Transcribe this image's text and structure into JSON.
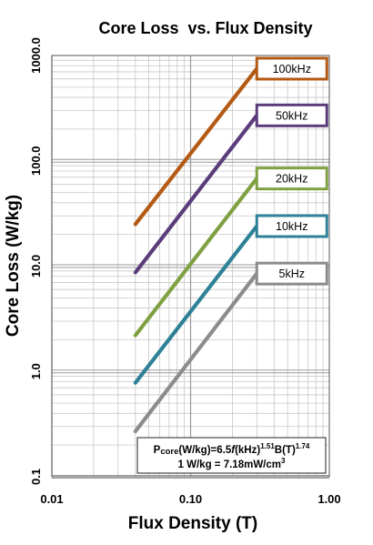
{
  "chart_data": {
    "type": "line",
    "title": "Core Loss  vs. Flux Density",
    "xlabel": "Flux Density (T)",
    "ylabel": "Core Loss (W/kg)",
    "xscale": "log",
    "yscale": "log",
    "xlim": [
      0.01,
      1.0
    ],
    "ylim": [
      0.1,
      1000.0
    ],
    "x_ticks": [
      "0.01",
      "0.10",
      "1.00"
    ],
    "y_ticks": [
      "0.1",
      "1.0",
      "10.0",
      "100.0",
      "1000.0"
    ],
    "grid": true,
    "legend_placement": "right, at each line end",
    "series": [
      {
        "name": "100kHz",
        "color": "#b45a14",
        "x": [
          0.04,
          0.3
        ],
        "y": [
          25,
          750
        ]
      },
      {
        "name": "50kHz",
        "color": "#5a3d7a",
        "x": [
          0.04,
          0.3
        ],
        "y": [
          8.7,
          270
        ]
      },
      {
        "name": "20kHz",
        "color": "#7fa142",
        "x": [
          0.04,
          0.3
        ],
        "y": [
          2.2,
          68
        ]
      },
      {
        "name": "10kHz",
        "color": "#2e8196",
        "x": [
          0.04,
          0.3
        ],
        "y": [
          0.78,
          24
        ]
      },
      {
        "name": "5kHz",
        "color": "#8c8c8c",
        "x": [
          0.04,
          0.3
        ],
        "y": [
          0.27,
          8.5
        ]
      }
    ],
    "annotation": {
      "formula_p": "P",
      "formula_sub": "core",
      "formula_a": "(W/kg)=6.5",
      "formula_f": "f",
      "formula_b": "(kHz)",
      "formula_exp1": "1.51",
      "formula_c": "B(T)",
      "formula_exp2": "1.74",
      "conversion_a": "1 W/kg = 7.18mW/cm",
      "conversion_exp": "3"
    }
  }
}
